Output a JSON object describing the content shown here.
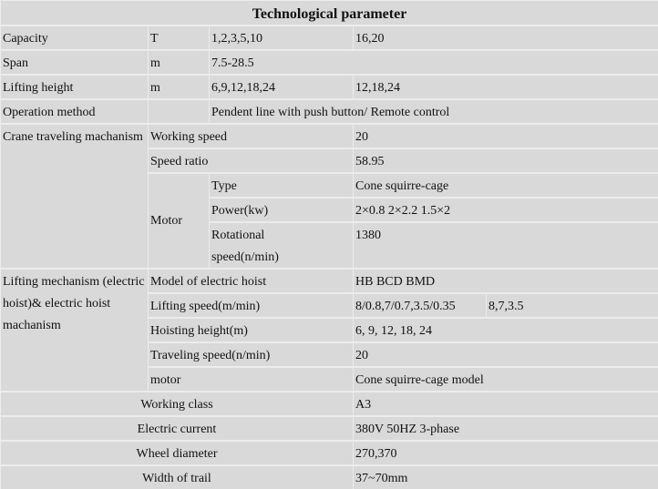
{
  "table": {
    "title": "Technological parameter",
    "cells": [
      "Technological parameter",
      "Capacity",
      "T",
      "1,2,3,5,10",
      "16,20",
      "Span",
      "m",
      "7.5-28.5",
      "Lifting height",
      "m",
      "6,9,12,18,24",
      "12,18,24",
      "Operation method",
      "",
      "Pendent line with push button/ Remote control",
      "Crane traveling machanism",
      "Working speed",
      "20",
      "Speed ratio",
      "58.95",
      "Motor",
      "Type",
      "Cone squirre-cage",
      "Power(kw)",
      "2×0.8   2×2.2   1.5×2",
      "Rotational speed(n/min)",
      "1380",
      "Lifting mechanism (electric hoist)& electric hoist machanism",
      "Model of electric hoist",
      "HB   BCD   BMD",
      "Lifting speed(m/min)",
      "8/0.8,7/0.7,3.5/0.35",
      "8,7,3.5",
      "Hoisting height(m)",
      "6, 9, 12, 18, 24",
      "Traveling speed(n/min)",
      "20",
      "motor",
      "Cone squirre-cage model",
      "Working class",
      "A3",
      "Electric current",
      "380V 50HZ 3-phase",
      "Wheel diameter",
      "270,370",
      "Width of trail",
      "37~70mm"
    ]
  }
}
